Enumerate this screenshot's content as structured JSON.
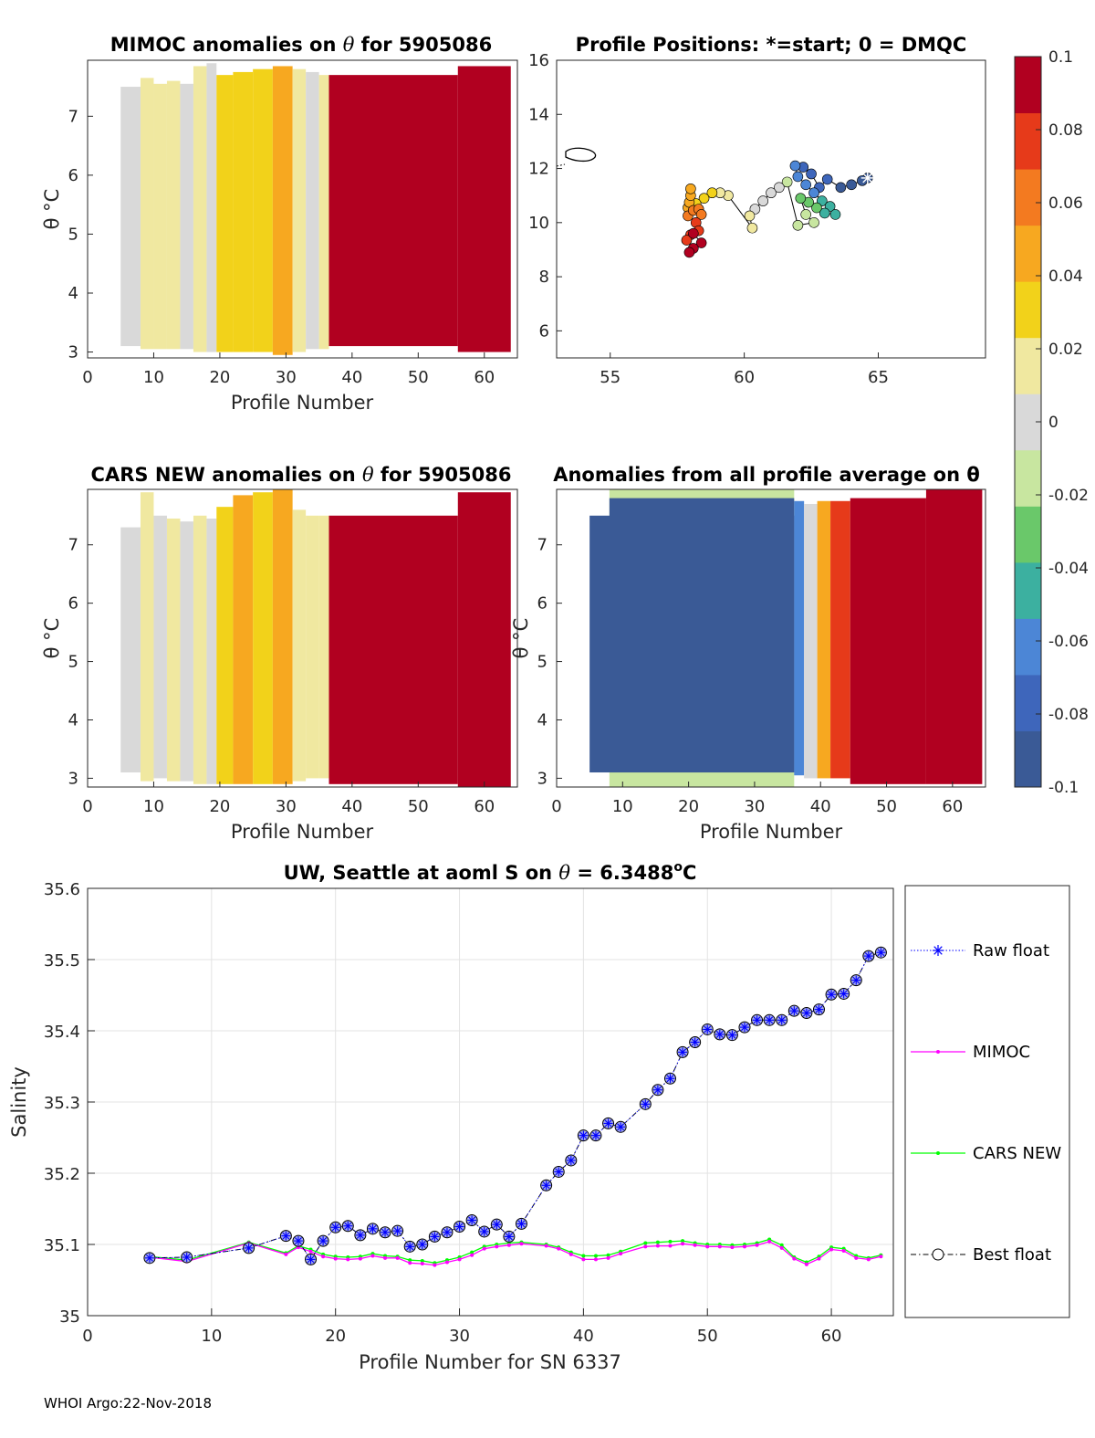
{
  "footer": "WHOI Argo:22-Nov-2018",
  "colors": {
    "colormap": [
      "#3a5a96",
      "#3e66bb",
      "#4c86d6",
      "#3cb0a0",
      "#6ac86a",
      "#c8e6a0",
      "#d9d9d9",
      "#f0e8a0",
      "#f2d21a",
      "#f7a820",
      "#f37a20",
      "#e63a1a",
      "#b10020"
    ],
    "raw_float": "#0000ff",
    "mimoc": "#ff00ff",
    "cars": "#00ff00",
    "best": "#000000",
    "marker_fill": "#a4aaea"
  },
  "chart_data": [
    {
      "id": "mimoc",
      "type": "heatmap",
      "title_prefix": "MIMOC anomalies on ",
      "title_theta": "θ",
      "title_suffix": "  for 5905086",
      "xlabel": "Profile Number",
      "ylabel": "θ °C",
      "xlim": [
        0,
        65
      ],
      "ylim": [
        2.9,
        7.95
      ],
      "xticks": [
        0,
        10,
        20,
        30,
        40,
        50,
        60
      ],
      "yticks": [
        3,
        4,
        5,
        6,
        7
      ],
      "anomaly_blocks": [
        {
          "x0": 5,
          "x1": 8,
          "y0": 3.1,
          "y1": 7.5,
          "v": 0.005
        },
        {
          "x0": 8,
          "x1": 10,
          "y0": 3.05,
          "y1": 7.65,
          "v": 0.018
        },
        {
          "x0": 10,
          "x1": 12,
          "y0": 3.05,
          "y1": 7.55,
          "v": 0.008
        },
        {
          "x0": 12,
          "x1": 14,
          "y0": 3.05,
          "y1": 7.6,
          "v": 0.014
        },
        {
          "x0": 14,
          "x1": 16,
          "y0": 3.05,
          "y1": 7.55,
          "v": 0.004
        },
        {
          "x0": 16,
          "x1": 18,
          "y0": 3.0,
          "y1": 7.85,
          "v": 0.012
        },
        {
          "x0": 18,
          "x1": 19.5,
          "y0": 3.0,
          "y1": 7.9,
          "v": 0.002
        },
        {
          "x0": 19.5,
          "x1": 22,
          "y0": 3.0,
          "y1": 7.7,
          "v": 0.03
        },
        {
          "x0": 22,
          "x1": 25,
          "y0": 3.0,
          "y1": 7.75,
          "v": 0.034
        },
        {
          "x0": 25,
          "x1": 28,
          "y0": 3.0,
          "y1": 7.8,
          "v": 0.032
        },
        {
          "x0": 28,
          "x1": 31,
          "y0": 2.95,
          "y1": 7.85,
          "v": 0.04
        },
        {
          "x0": 31,
          "x1": 33,
          "y0": 3.0,
          "y1": 7.8,
          "v": 0.01
        },
        {
          "x0": 33,
          "x1": 35,
          "y0": 3.05,
          "y1": 7.75,
          "v": 0.005
        },
        {
          "x0": 35,
          "x1": 36.5,
          "y0": 3.05,
          "y1": 7.7,
          "v": 0.016
        },
        {
          "x0": 36.5,
          "x1": 56,
          "y0": 3.1,
          "y1": 7.7,
          "v": 0.1
        },
        {
          "x0": 56,
          "x1": 64,
          "y0": 3.0,
          "y1": 7.85,
          "v": 0.1
        }
      ]
    },
    {
      "id": "positions",
      "type": "scatter",
      "title": "Profile Positions: *=start; 0 = DMQC",
      "xlim": [
        53,
        69
      ],
      "ylim": [
        5,
        16
      ],
      "xticks": [
        55,
        60,
        65
      ],
      "yticks": [
        6,
        8,
        10,
        12,
        14,
        16
      ],
      "points": [
        [
          64.6,
          11.65
        ],
        [
          64.4,
          11.55
        ],
        [
          64.0,
          11.4
        ],
        [
          63.6,
          11.3
        ],
        [
          63.1,
          11.6
        ],
        [
          62.8,
          11.3
        ],
        [
          62.5,
          11.8
        ],
        [
          62.2,
          12.05
        ],
        [
          61.9,
          12.1
        ],
        [
          62.0,
          11.7
        ],
        [
          62.3,
          11.4
        ],
        [
          62.6,
          11.1
        ],
        [
          62.9,
          10.8
        ],
        [
          63.2,
          10.6
        ],
        [
          63.4,
          10.3
        ],
        [
          63.0,
          10.35
        ],
        [
          62.7,
          10.55
        ],
        [
          62.4,
          10.75
        ],
        [
          62.1,
          10.9
        ],
        [
          62.3,
          10.3
        ],
        [
          62.6,
          10.0
        ],
        [
          62.0,
          9.9
        ],
        [
          61.6,
          11.5
        ],
        [
          61.3,
          11.3
        ],
        [
          61.0,
          11.1
        ],
        [
          60.7,
          10.8
        ],
        [
          60.4,
          10.5
        ],
        [
          60.2,
          10.25
        ],
        [
          60.3,
          9.8
        ],
        [
          59.4,
          11.0
        ],
        [
          59.1,
          11.1
        ],
        [
          58.8,
          11.1
        ],
        [
          58.5,
          10.9
        ],
        [
          58.2,
          10.7
        ],
        [
          57.9,
          10.55
        ],
        [
          57.95,
          10.75
        ],
        [
          58.0,
          11.0
        ],
        [
          58.0,
          11.25
        ],
        [
          57.9,
          10.25
        ],
        [
          58.1,
          10.45
        ],
        [
          58.3,
          10.5
        ],
        [
          58.4,
          10.3
        ],
        [
          58.2,
          10.0
        ],
        [
          58.3,
          9.7
        ],
        [
          58.0,
          9.55
        ],
        [
          57.85,
          9.35
        ],
        [
          58.1,
          9.6
        ],
        [
          58.4,
          9.25
        ],
        [
          58.1,
          9.05
        ],
        [
          57.95,
          8.9
        ]
      ]
    },
    {
      "id": "cars",
      "type": "heatmap",
      "title_prefix": "CARS NEW anomalies on ",
      "title_theta": "θ",
      "title_suffix": " for 5905086",
      "xlabel": "Profile Number",
      "ylabel": "θ °C",
      "xlim": [
        0,
        65
      ],
      "ylim": [
        2.85,
        7.95
      ],
      "xticks": [
        0,
        10,
        20,
        30,
        40,
        50,
        60
      ],
      "yticks": [
        3,
        4,
        5,
        6,
        7
      ],
      "anomaly_blocks": [
        {
          "x0": 5,
          "x1": 8,
          "y0": 3.1,
          "y1": 7.3,
          "v": 0.003
        },
        {
          "x0": 8,
          "x1": 10,
          "y0": 2.95,
          "y1": 7.9,
          "v": 0.02
        },
        {
          "x0": 10,
          "x1": 12,
          "y0": 3.0,
          "y1": 7.5,
          "v": 0.006
        },
        {
          "x0": 12,
          "x1": 14,
          "y0": 2.95,
          "y1": 7.45,
          "v": 0.01
        },
        {
          "x0": 14,
          "x1": 16,
          "y0": 2.95,
          "y1": 7.4,
          "v": 0.004
        },
        {
          "x0": 16,
          "x1": 18,
          "y0": 2.9,
          "y1": 7.5,
          "v": 0.014
        },
        {
          "x0": 18,
          "x1": 19.5,
          "y0": 2.9,
          "y1": 7.45,
          "v": 0.002
        },
        {
          "x0": 19.5,
          "x1": 22,
          "y0": 2.9,
          "y1": 7.65,
          "v": 0.03
        },
        {
          "x0": 22,
          "x1": 25,
          "y0": 2.9,
          "y1": 7.85,
          "v": 0.042
        },
        {
          "x0": 25,
          "x1": 28,
          "y0": 2.9,
          "y1": 7.9,
          "v": 0.036
        },
        {
          "x0": 28,
          "x1": 31,
          "y0": 2.9,
          "y1": 7.95,
          "v": 0.045
        },
        {
          "x0": 31,
          "x1": 33,
          "y0": 2.95,
          "y1": 7.6,
          "v": 0.012
        },
        {
          "x0": 33,
          "x1": 35,
          "y0": 3.0,
          "y1": 7.5,
          "v": 0.022
        },
        {
          "x0": 35,
          "x1": 36.5,
          "y0": 3.0,
          "y1": 7.5,
          "v": 0.018
        },
        {
          "x0": 36.5,
          "x1": 56,
          "y0": 2.9,
          "y1": 7.5,
          "v": 0.1
        },
        {
          "x0": 56,
          "x1": 64,
          "y0": 2.85,
          "y1": 7.9,
          "v": 0.1
        }
      ]
    },
    {
      "id": "allavg",
      "type": "heatmap",
      "title": "Anomalies from all profile average on θ",
      "xlabel": "Profile Number",
      "ylabel": "θ °C",
      "xlim": [
        0,
        65
      ],
      "ylim": [
        2.85,
        7.95
      ],
      "xticks": [
        0,
        10,
        20,
        30,
        40,
        50,
        60
      ],
      "yticks": [
        3,
        4,
        5,
        6,
        7
      ],
      "anomaly_blocks": [
        {
          "x0": 8,
          "x1": 36,
          "y0": 2.85,
          "y1": 7.95,
          "v": -0.015
        },
        {
          "x0": 5,
          "x1": 36,
          "y0": 3.1,
          "y1": 7.5,
          "v": -0.1
        },
        {
          "x0": 8,
          "x1": 36,
          "y0": 3.1,
          "y1": 7.8,
          "v": -0.1
        },
        {
          "x0": 19,
          "x1": 22,
          "y0": 3.3,
          "y1": 7.7,
          "v": -0.088
        },
        {
          "x0": 31,
          "x1": 34,
          "y0": 3.3,
          "y1": 7.7,
          "v": -0.085
        },
        {
          "x0": 36,
          "x1": 37.5,
          "y0": 3.05,
          "y1": 7.75,
          "v": -0.055
        },
        {
          "x0": 37.5,
          "x1": 39.5,
          "y0": 3.0,
          "y1": 7.7,
          "v": 0.003
        },
        {
          "x0": 39.5,
          "x1": 41.5,
          "y0": 3.0,
          "y1": 7.75,
          "v": 0.04
        },
        {
          "x0": 41.5,
          "x1": 44.5,
          "y0": 3.0,
          "y1": 7.75,
          "v": 0.07
        },
        {
          "x0": 44.5,
          "x1": 56,
          "y0": 2.9,
          "y1": 7.8,
          "v": 0.1
        },
        {
          "x0": 56,
          "x1": 64.5,
          "y0": 2.9,
          "y1": 7.95,
          "v": 0.1
        }
      ]
    },
    {
      "id": "salinity",
      "type": "line",
      "title_prefix": "UW, Seattle at aoml S on ",
      "title_theta": "θ",
      "title_suffix": " = 6.3488",
      "title_sup": "o",
      "title_unit": "C",
      "xlabel": "Profile Number for SN 6337",
      "ylabel": "Salinity",
      "xlim": [
        0,
        65
      ],
      "ylim": [
        35,
        35.6
      ],
      "xticks": [
        0,
        10,
        20,
        30,
        40,
        50,
        60
      ],
      "yticks": [
        35,
        35.1,
        35.2,
        35.3,
        35.4,
        35.5,
        35.6
      ],
      "yticklabels": [
        "35",
        "35.1",
        "35.2",
        "35.3",
        "35.4",
        "35.5",
        "35.6"
      ],
      "x": [
        5,
        8,
        13,
        16,
        17,
        18,
        19,
        20,
        21,
        22,
        23,
        24,
        25,
        26,
        27,
        28,
        29,
        30,
        31,
        32,
        33,
        34,
        35,
        37,
        38,
        39,
        40,
        41,
        42,
        43,
        45,
        46,
        47,
        48,
        49,
        50,
        51,
        52,
        53,
        54,
        55,
        56,
        57,
        58,
        59,
        60,
        61,
        62,
        63,
        64
      ],
      "series": [
        {
          "name": "Raw float",
          "values": [
            35.081,
            35.082,
            35.095,
            35.112,
            35.105,
            35.079,
            35.105,
            35.124,
            35.126,
            35.113,
            35.122,
            35.117,
            35.119,
            35.097,
            35.1,
            35.111,
            35.117,
            35.125,
            35.134,
            35.118,
            35.128,
            35.111,
            35.129,
            35.183,
            35.202,
            35.218,
            35.253,
            35.253,
            35.27,
            35.265,
            35.297,
            35.317,
            35.333,
            35.37,
            35.384,
            35.402,
            35.395,
            35.394,
            35.405,
            35.415,
            35.415,
            35.415,
            35.428,
            35.425,
            35.43,
            35.451,
            35.452,
            35.471,
            35.505,
            35.51
          ]
        },
        {
          "name": "MIMOC",
          "values": [
            35.082,
            35.076,
            35.102,
            35.086,
            35.096,
            35.09,
            35.083,
            35.08,
            35.079,
            35.08,
            35.084,
            35.081,
            35.081,
            35.074,
            35.073,
            35.071,
            35.075,
            35.079,
            35.085,
            35.094,
            35.097,
            35.099,
            35.101,
            35.098,
            35.094,
            35.086,
            35.079,
            35.079,
            35.081,
            35.087,
            35.097,
            35.098,
            35.098,
            35.101,
            35.099,
            35.097,
            35.097,
            35.096,
            35.097,
            35.099,
            35.104,
            35.095,
            35.08,
            35.072,
            35.08,
            35.093,
            35.091,
            35.081,
            35.079,
            35.083
          ]
        },
        {
          "name": "CARS NEW",
          "values": [
            35.083,
            35.078,
            35.103,
            35.088,
            35.098,
            35.093,
            35.086,
            35.083,
            35.082,
            35.083,
            35.087,
            35.084,
            35.083,
            35.078,
            35.077,
            35.074,
            35.078,
            35.082,
            35.089,
            35.097,
            35.1,
            35.102,
            35.103,
            35.1,
            35.096,
            35.089,
            35.084,
            35.084,
            35.085,
            35.09,
            35.102,
            35.103,
            35.104,
            35.105,
            35.102,
            35.1,
            35.1,
            35.099,
            35.1,
            35.102,
            35.107,
            35.099,
            35.082,
            35.075,
            35.083,
            35.096,
            35.094,
            35.084,
            35.081,
            35.085
          ]
        },
        {
          "name": "Best float",
          "values": [
            35.081,
            35.082,
            35.095,
            35.112,
            35.105,
            35.079,
            35.105,
            35.124,
            35.126,
            35.113,
            35.122,
            35.117,
            35.119,
            35.097,
            35.1,
            35.111,
            35.117,
            35.125,
            35.134,
            35.118,
            35.128,
            35.111,
            35.129,
            35.183,
            35.202,
            35.218,
            35.253,
            35.253,
            35.27,
            35.265,
            35.297,
            35.317,
            35.333,
            35.37,
            35.384,
            35.402,
            35.395,
            35.394,
            35.405,
            35.415,
            35.415,
            35.415,
            35.428,
            35.425,
            35.43,
            35.451,
            35.452,
            35.471,
            35.505,
            35.51
          ]
        }
      ],
      "legend": [
        "Raw float",
        "MIMOC",
        "CARS NEW",
        "Best float"
      ]
    }
  ],
  "colorbar": {
    "ticks": [
      0.1,
      0.08,
      0.06,
      0.04,
      0.02,
      0,
      -0.02,
      -0.04,
      -0.06,
      -0.08,
      -0.1
    ],
    "labels": [
      "0.1",
      "0.08",
      "0.06",
      "0.04",
      "0.02",
      "0",
      "-0.02",
      "-0.04",
      "-0.06",
      "-0.08",
      "-0.1"
    ],
    "range": [
      -0.1,
      0.1
    ]
  }
}
